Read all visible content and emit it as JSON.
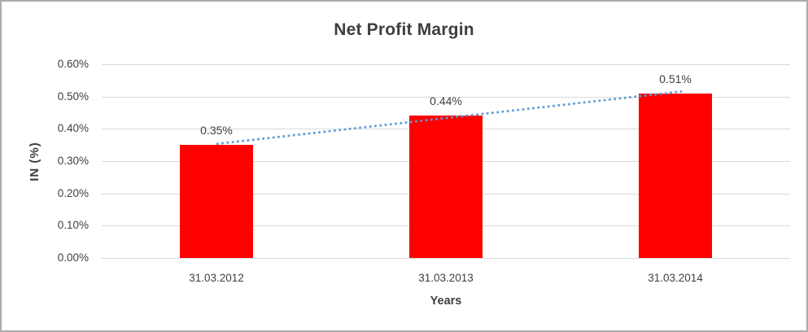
{
  "chart_data": {
    "type": "bar",
    "title": "Net Profit Margin",
    "xlabel": "Years",
    "ylabel": "IN (%)",
    "categories": [
      "31.03.2012",
      "31.03.2013",
      "31.03.2014"
    ],
    "values": [
      0.35,
      0.44,
      0.51
    ],
    "data_labels": [
      "0.35%",
      "0.44%",
      "0.51%"
    ],
    "yticks": [
      0.0,
      0.1,
      0.2,
      0.3,
      0.4,
      0.5,
      0.6
    ],
    "ytick_labels": [
      "0.00%",
      "0.10%",
      "0.20%",
      "0.30%",
      "0.40%",
      "0.50%",
      "0.60%"
    ],
    "ylim": [
      0,
      0.6
    ],
    "grid": true,
    "legend": "none",
    "trendline": {
      "type": "linear",
      "style": "dotted"
    },
    "colors": {
      "bar": "#FF0000",
      "trendline": "#5B9BD5",
      "gridline": "#D9D9D9",
      "text": "#404040",
      "title": "#3E3E3E",
      "frame_border": "#ABABAB",
      "background": "#FFFFFF"
    }
  }
}
